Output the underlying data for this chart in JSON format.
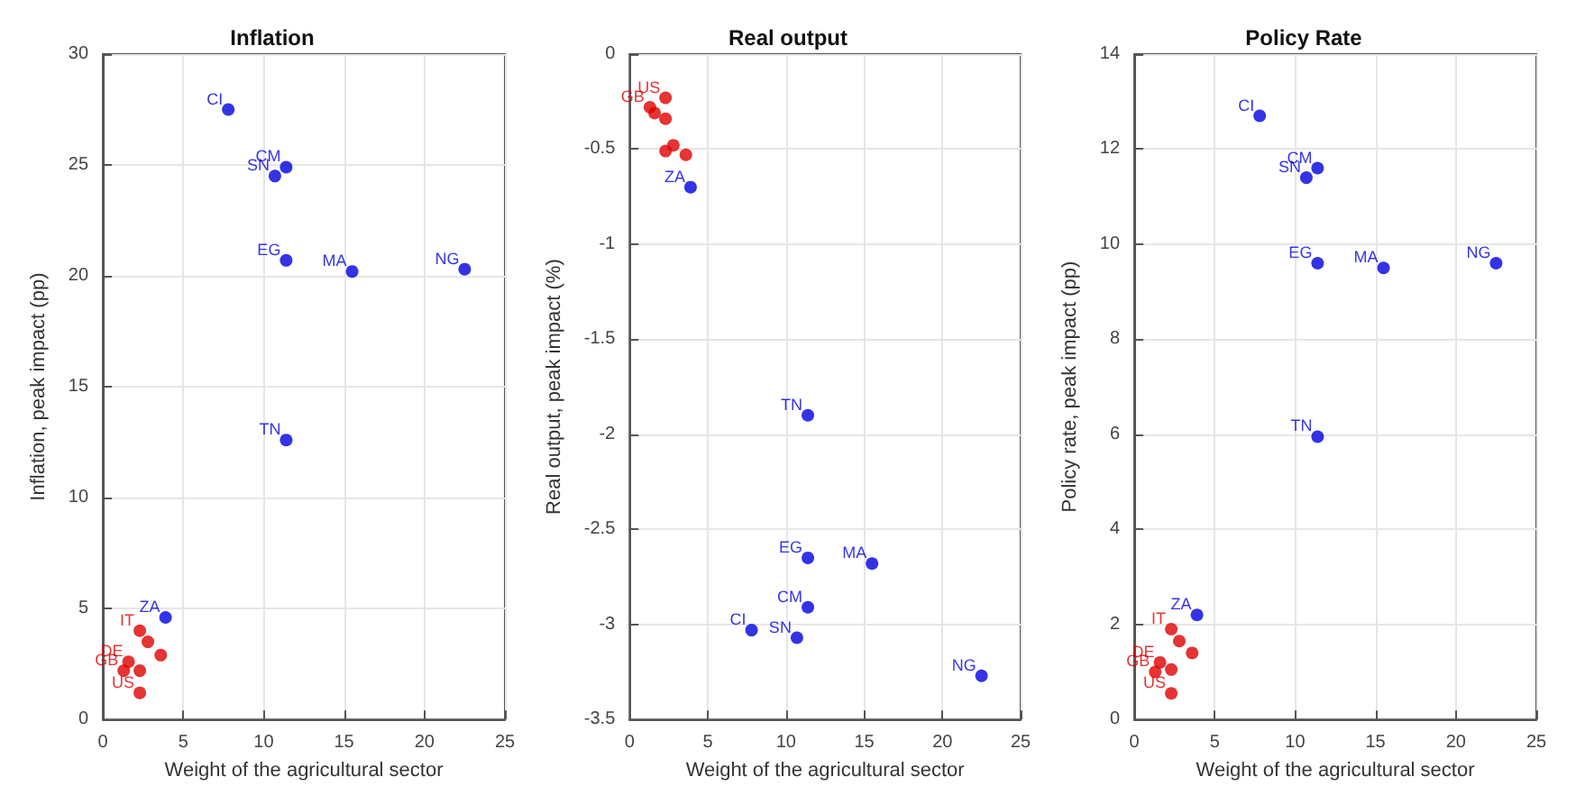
{
  "chart_data": [
    {
      "type": "scatter",
      "title": "Inflation",
      "xlabel": "Weight of the agricultural sector",
      "ylabel": "Inflation, peak impact (pp)",
      "xlim": [
        0,
        25
      ],
      "xticks": [
        0,
        5,
        10,
        15,
        20,
        25
      ],
      "ylim": [
        0,
        30
      ],
      "yticks": [
        0,
        5,
        10,
        15,
        20,
        25,
        30
      ],
      "grid": true,
      "marker": "circle",
      "series": [
        {
          "color": "#0000e0",
          "x": [
            7.8,
            10.7,
            11.4,
            11.4,
            11.4,
            15.5,
            22.5,
            3.9
          ],
          "values": [
            27.5,
            24.5,
            24.9,
            20.7,
            12.6,
            20.2,
            20.3,
            4.6
          ]
        },
        {
          "color": "#e00000",
          "x": [
            2.3,
            2.8,
            3.6,
            1.6,
            1.3,
            2.3,
            2.3
          ],
          "values": [
            4.0,
            3.5,
            2.9,
            2.6,
            2.2,
            2.2,
            1.2
          ]
        }
      ],
      "annotations": [
        {
          "text": "CI",
          "x": 7.8,
          "y": 27.5
        },
        {
          "text": "SN",
          "x": 10.7,
          "y": 24.5
        },
        {
          "text": "CM",
          "x": 11.4,
          "y": 24.9
        },
        {
          "text": "EG",
          "x": 11.4,
          "y": 20.7
        },
        {
          "text": "TN",
          "x": 11.4,
          "y": 12.6
        },
        {
          "text": "MA",
          "x": 15.5,
          "y": 20.2
        },
        {
          "text": "NG",
          "x": 22.5,
          "y": 20.3
        },
        {
          "text": "ZA",
          "x": 3.9,
          "y": 4.6
        },
        {
          "text": "IT",
          "x": 2.3,
          "y": 4.0
        },
        {
          "text": "DE",
          "x": 1.6,
          "y": 2.6
        },
        {
          "text": "GB",
          "x": 1.3,
          "y": 2.2
        },
        {
          "text": "US",
          "x": 2.3,
          "y": 1.2
        }
      ]
    },
    {
      "type": "scatter",
      "title": "Real output",
      "xlabel": "Weight of the agricultural sector",
      "ylabel": "Real output, peak impact (%)",
      "xlim": [
        0,
        25
      ],
      "xticks": [
        0,
        5,
        10,
        15,
        20,
        25
      ],
      "ylim": [
        -3.5,
        0
      ],
      "yticks": [
        -3.5,
        -3,
        -2.5,
        -2,
        -1.5,
        -1,
        -0.5,
        0
      ],
      "grid": true,
      "marker": "circle",
      "series": [
        {
          "color": "#0000e0",
          "x": [
            7.8,
            10.7,
            11.4,
            11.4,
            11.4,
            15.5,
            22.5,
            3.9
          ],
          "values": [
            -3.03,
            -3.07,
            -2.91,
            -2.65,
            -1.9,
            -2.68,
            -3.27,
            -0.7
          ]
        },
        {
          "color": "#e00000",
          "x": [
            2.3,
            1.3,
            1.6,
            2.3,
            2.3,
            2.8,
            3.6
          ],
          "values": [
            -0.23,
            -0.28,
            -0.31,
            -0.34,
            -0.51,
            -0.48,
            -0.53
          ]
        }
      ],
      "annotations": [
        {
          "text": "CI",
          "x": 7.8,
          "y": -3.03
        },
        {
          "text": "SN",
          "x": 10.7,
          "y": -3.07
        },
        {
          "text": "CM",
          "x": 11.4,
          "y": -2.91
        },
        {
          "text": "EG",
          "x": 11.4,
          "y": -2.65
        },
        {
          "text": "TN",
          "x": 11.4,
          "y": -1.9
        },
        {
          "text": "MA",
          "x": 15.5,
          "y": -2.68
        },
        {
          "text": "NG",
          "x": 22.5,
          "y": -3.27
        },
        {
          "text": "ZA",
          "x": 3.9,
          "y": -0.7
        },
        {
          "text": "US",
          "x": 2.3,
          "y": -0.23
        },
        {
          "text": "GB",
          "x": 1.3,
          "y": -0.28
        }
      ]
    },
    {
      "type": "scatter",
      "title": "Policy Rate",
      "xlabel": "Weight of the agricultural sector",
      "ylabel": "Policy rate, peak impact (pp)",
      "xlim": [
        0,
        25
      ],
      "xticks": [
        0,
        5,
        10,
        15,
        20,
        25
      ],
      "ylim": [
        0,
        14
      ],
      "yticks": [
        0,
        2,
        4,
        6,
        8,
        10,
        12,
        14
      ],
      "grid": true,
      "marker": "circle",
      "series": [
        {
          "color": "#0000e0",
          "x": [
            7.8,
            10.7,
            11.4,
            11.4,
            11.4,
            15.5,
            22.5,
            3.9
          ],
          "values": [
            12.7,
            11.4,
            11.6,
            9.6,
            5.95,
            9.5,
            9.6,
            2.2
          ]
        },
        {
          "color": "#e00000",
          "x": [
            2.3,
            2.8,
            3.6,
            1.6,
            1.3,
            2.3,
            2.3
          ],
          "values": [
            1.9,
            1.65,
            1.4,
            1.2,
            1.0,
            1.05,
            0.55
          ]
        }
      ],
      "annotations": [
        {
          "text": "CI",
          "x": 7.8,
          "y": 12.7
        },
        {
          "text": "SN",
          "x": 10.7,
          "y": 11.4
        },
        {
          "text": "CM",
          "x": 11.4,
          "y": 11.6
        },
        {
          "text": "EG",
          "x": 11.4,
          "y": 9.6
        },
        {
          "text": "TN",
          "x": 11.4,
          "y": 5.95
        },
        {
          "text": "MA",
          "x": 15.5,
          "y": 9.5
        },
        {
          "text": "NG",
          "x": 22.5,
          "y": 9.6
        },
        {
          "text": "ZA",
          "x": 3.9,
          "y": 2.2
        },
        {
          "text": "IT",
          "x": 2.3,
          "y": 1.9
        },
        {
          "text": "DE",
          "x": 1.6,
          "y": 1.2
        },
        {
          "text": "GB",
          "x": 1.3,
          "y": 1.0
        },
        {
          "text": "US",
          "x": 2.3,
          "y": 0.55
        }
      ]
    }
  ]
}
